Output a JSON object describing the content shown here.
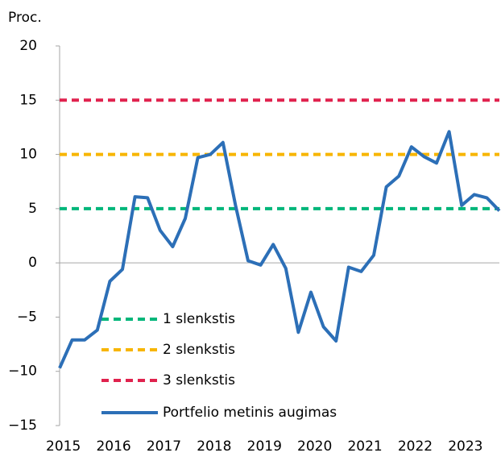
{
  "chart_data": {
    "type": "line",
    "y_label": "Proc.",
    "categories": [
      "2015",
      null,
      null,
      null,
      "2016",
      null,
      null,
      null,
      "2017",
      null,
      null,
      null,
      "2018",
      null,
      null,
      null,
      "2019",
      null,
      null,
      null,
      "2020",
      null,
      null,
      null,
      "2021",
      null,
      null,
      null,
      "2022",
      null,
      null,
      null,
      "2023",
      null,
      null,
      null
    ],
    "ylim": [
      -15,
      20
    ],
    "yticks": [
      {
        "value": -15,
        "label": "−15"
      },
      {
        "value": -10,
        "label": "−10"
      },
      {
        "value": -5,
        "label": "−5"
      },
      0,
      5,
      10,
      15,
      20
    ],
    "legend": "lower left",
    "series": [
      {
        "name": "1 slenkstis",
        "color": "#00b67a",
        "dashed": true,
        "value": 5
      },
      {
        "name": "2 slenkstis",
        "color": "#f7b500",
        "dashed": true,
        "value": 10
      },
      {
        "name": "3 slenkstis",
        "color": "#e0224e",
        "dashed": true,
        "value": 15
      },
      {
        "name": "Portfelio metinis augimas",
        "color": "#2c6fb7",
        "dashed": false,
        "values": [
          -9.7,
          -7.1,
          -7.1,
          -6.2,
          -1.7,
          -0.6,
          6.1,
          6.0,
          3.0,
          1.5,
          4.1,
          9.7,
          10.0,
          11.1,
          5.3,
          0.2,
          -0.2,
          1.7,
          -0.5,
          -6.4,
          -2.7,
          -5.9,
          -7.2,
          -0.4,
          -0.8,
          0.7,
          7.0,
          8.0,
          10.7,
          9.8,
          9.2,
          12.1,
          5.3,
          6.3,
          6.0,
          4.8
        ]
      }
    ]
  }
}
